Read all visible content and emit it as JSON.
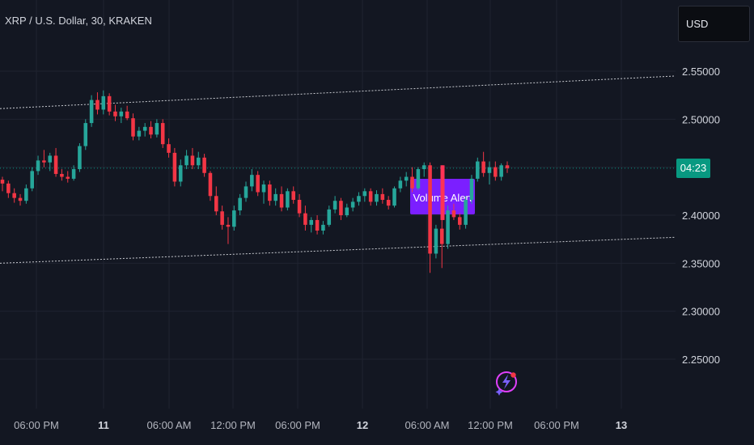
{
  "header": {
    "symbol_title": "XRP / U.S. Dollar, 30, KRAKEN"
  },
  "currency_selector": {
    "label": "USD"
  },
  "countdown": {
    "label": "04:23"
  },
  "alert": {
    "label": "Volume Alert"
  },
  "colors": {
    "up": "#26a69a",
    "down": "#f23645",
    "alert_box": "#7b1fff",
    "price_line": "#089981"
  },
  "icons": {
    "assistant": "sparkle-lightning-icon"
  },
  "chart_data": {
    "type": "candlestick",
    "title": "XRP / U.S. Dollar, 30, KRAKEN",
    "ylim": [
      2.22,
      2.6
    ],
    "y_ticks": [
      "2.55000",
      "2.50000",
      "2.40000",
      "2.35000",
      "2.30000",
      "2.25000"
    ],
    "x_ticks": [
      "06:00 PM",
      "11",
      "06:00 AM",
      "12:00 PM",
      "06:00 PM",
      "12",
      "06:00 AM",
      "12:00 PM",
      "06:00 PM",
      "13"
    ],
    "bold_x_ticks": [
      "11",
      "12",
      "13"
    ],
    "current_price": 2.449,
    "channel_upper": [
      2.511,
      2.545
    ],
    "channel_lower": [
      2.35,
      2.377
    ],
    "candles": [
      [
        2.437,
        2.44,
        2.425,
        2.433
      ],
      [
        2.433,
        2.436,
        2.418,
        2.423
      ],
      [
        2.423,
        2.428,
        2.413,
        2.418
      ],
      [
        2.418,
        2.422,
        2.41,
        2.415
      ],
      [
        2.415,
        2.432,
        2.412,
        2.428
      ],
      [
        2.428,
        2.45,
        2.425,
        2.446
      ],
      [
        2.446,
        2.462,
        2.442,
        2.457
      ],
      [
        2.457,
        2.468,
        2.45,
        2.455
      ],
      [
        2.455,
        2.465,
        2.446,
        2.462
      ],
      [
        2.462,
        2.47,
        2.44,
        2.443
      ],
      [
        2.443,
        2.448,
        2.436,
        2.44
      ],
      [
        2.44,
        2.446,
        2.434,
        2.438
      ],
      [
        2.438,
        2.452,
        2.436,
        2.448
      ],
      [
        2.448,
        2.475,
        2.445,
        2.472
      ],
      [
        2.472,
        2.5,
        2.468,
        2.496
      ],
      [
        2.496,
        2.525,
        2.492,
        2.52
      ],
      [
        2.52,
        2.528,
        2.505,
        2.51
      ],
      [
        2.51,
        2.53,
        2.505,
        2.524
      ],
      [
        2.524,
        2.527,
        2.504,
        2.508
      ],
      [
        2.508,
        2.515,
        2.498,
        2.503
      ],
      [
        2.503,
        2.512,
        2.496,
        2.508
      ],
      [
        2.508,
        2.514,
        2.499,
        2.501
      ],
      [
        2.501,
        2.506,
        2.478,
        2.482
      ],
      [
        2.482,
        2.492,
        2.478,
        2.488
      ],
      [
        2.488,
        2.496,
        2.482,
        2.492
      ],
      [
        2.492,
        2.498,
        2.48,
        2.484
      ],
      [
        2.484,
        2.5,
        2.481,
        2.496
      ],
      [
        2.496,
        2.5,
        2.47,
        2.474
      ],
      [
        2.474,
        2.48,
        2.46,
        2.465
      ],
      [
        2.465,
        2.47,
        2.43,
        2.435
      ],
      [
        2.435,
        2.458,
        2.43,
        2.452
      ],
      [
        2.452,
        2.468,
        2.448,
        2.462
      ],
      [
        2.462,
        2.47,
        2.448,
        2.452
      ],
      [
        2.452,
        2.466,
        2.448,
        2.46
      ],
      [
        2.46,
        2.464,
        2.44,
        2.444
      ],
      [
        2.444,
        2.446,
        2.415,
        2.42
      ],
      [
        2.42,
        2.43,
        2.4,
        2.404
      ],
      [
        2.404,
        2.41,
        2.385,
        2.39
      ],
      [
        2.39,
        2.398,
        2.37,
        2.388
      ],
      [
        2.388,
        2.41,
        2.384,
        2.405
      ],
      [
        2.405,
        2.422,
        2.4,
        2.418
      ],
      [
        2.418,
        2.435,
        2.414,
        2.43
      ],
      [
        2.43,
        2.448,
        2.425,
        2.442
      ],
      [
        2.442,
        2.446,
        2.42,
        2.424
      ],
      [
        2.424,
        2.436,
        2.412,
        2.432
      ],
      [
        2.432,
        2.436,
        2.41,
        2.415
      ],
      [
        2.415,
        2.428,
        2.41,
        2.422
      ],
      [
        2.422,
        2.43,
        2.404,
        2.408
      ],
      [
        2.408,
        2.428,
        2.405,
        2.425
      ],
      [
        2.425,
        2.43,
        2.412,
        2.416
      ],
      [
        2.416,
        2.422,
        2.398,
        2.402
      ],
      [
        2.402,
        2.41,
        2.384,
        2.39
      ],
      [
        2.39,
        2.398,
        2.382,
        2.395
      ],
      [
        2.395,
        2.4,
        2.38,
        2.384
      ],
      [
        2.384,
        2.394,
        2.38,
        2.39
      ],
      [
        2.39,
        2.41,
        2.388,
        2.406
      ],
      [
        2.406,
        2.42,
        2.402,
        2.415
      ],
      [
        2.415,
        2.418,
        2.395,
        2.4
      ],
      [
        2.4,
        2.412,
        2.398,
        2.408
      ],
      [
        2.408,
        2.418,
        2.404,
        2.414
      ],
      [
        2.414,
        2.424,
        2.41,
        2.42
      ],
      [
        2.42,
        2.428,
        2.414,
        2.425
      ],
      [
        2.425,
        2.428,
        2.41,
        2.414
      ],
      [
        2.414,
        2.426,
        2.41,
        2.422
      ],
      [
        2.422,
        2.428,
        2.412,
        2.416
      ],
      [
        2.416,
        2.42,
        2.406,
        2.41
      ],
      [
        2.41,
        2.43,
        2.408,
        2.428
      ],
      [
        2.428,
        2.44,
        2.424,
        2.436
      ],
      [
        2.436,
        2.445,
        2.43,
        2.44
      ],
      [
        2.44,
        2.45,
        2.424,
        2.428
      ],
      [
        2.428,
        2.45,
        2.426,
        2.448
      ],
      [
        2.448,
        2.455,
        2.44,
        2.452
      ],
      [
        2.452,
        2.455,
        2.34,
        2.36
      ],
      [
        2.36,
        2.39,
        2.355,
        2.386
      ],
      [
        2.386,
        2.4,
        2.345,
        2.37
      ],
      [
        2.37,
        2.41,
        2.365,
        2.405
      ],
      [
        2.405,
        2.412,
        2.395,
        2.398
      ],
      [
        2.398,
        2.402,
        2.385,
        2.39
      ],
      [
        2.39,
        2.42,
        2.386,
        2.416
      ],
      [
        2.416,
        2.442,
        2.412,
        2.438
      ],
      [
        2.438,
        2.46,
        2.435,
        2.456
      ],
      [
        2.456,
        2.466,
        2.44,
        2.444
      ],
      [
        2.444,
        2.456,
        2.432,
        2.45
      ],
      [
        2.45,
        2.456,
        2.436,
        2.44
      ],
      [
        2.44,
        2.454,
        2.436,
        2.452
      ],
      [
        2.452,
        2.456,
        2.444,
        2.449
      ]
    ],
    "alert_candle": [
      2.447,
      2.452,
      2.404,
      2.404
    ]
  }
}
